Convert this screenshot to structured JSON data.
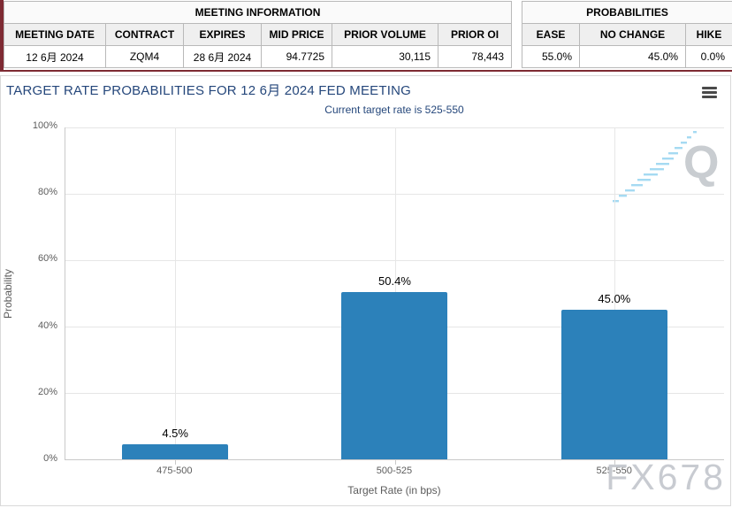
{
  "meeting_info": {
    "title": "MEETING INFORMATION",
    "columns": [
      "MEETING DATE",
      "CONTRACT",
      "EXPIRES",
      "MID PRICE",
      "PRIOR VOLUME",
      "PRIOR OI"
    ],
    "values": [
      "12 6月 2024",
      "ZQM4",
      "28 6月 2024",
      "94.7725",
      "30,115",
      "78,443"
    ]
  },
  "probabilities": {
    "title": "PROBABILITIES",
    "columns": [
      "EASE",
      "NO CHANGE",
      "HIKE"
    ],
    "values": [
      "55.0%",
      "45.0%",
      "0.0%"
    ]
  },
  "chart_data": {
    "type": "bar",
    "title": "TARGET RATE PROBABILITIES FOR 12 6月 2024 FED MEETING",
    "subtitle": "Current target rate is 525-550",
    "categories": [
      "475-500",
      "500-525",
      "525-550"
    ],
    "values": [
      4.5,
      50.4,
      45.0
    ],
    "data_labels": [
      "4.5%",
      "50.4%",
      "45.0%"
    ],
    "xlabel": "Target Rate (in bps)",
    "ylabel": "Probability",
    "ylim": [
      0,
      100
    ],
    "yticks": [
      "0%",
      "20%",
      "40%",
      "60%",
      "80%",
      "100%"
    ],
    "grid": true,
    "legend_position": "none",
    "bar_color": "#2c81ba"
  },
  "watermarks": {
    "logo_letter": "Q",
    "site": "FX678"
  },
  "colors": {
    "accent_maroon": "#7e2a33",
    "bar_blue": "#2c81ba",
    "title_navy": "#25477b"
  }
}
